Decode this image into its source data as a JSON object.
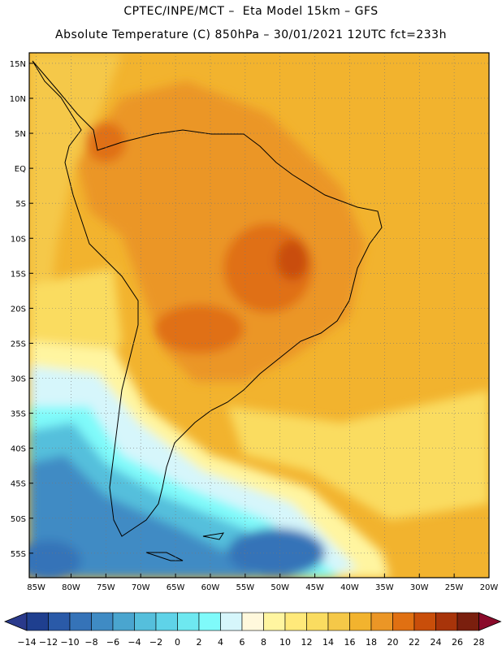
{
  "header": {
    "line1": "CPTEC/INPE/MCT –  Eta Model 15km – GFS",
    "line2": "Absolute Temperature (C) 850hPa – 30/01/2021 12UTC fct=233h"
  },
  "map": {
    "lat_labels": [
      "15N",
      "10N",
      "5N",
      "EQ",
      "5S",
      "10S",
      "15S",
      "20S",
      "25S",
      "30S",
      "35S",
      "40S",
      "45S",
      "50S",
      "55S"
    ],
    "lat_values": [
      15,
      10,
      5,
      0,
      -5,
      -10,
      -15,
      -20,
      -25,
      -30,
      -35,
      -40,
      -45,
      -50,
      -55
    ],
    "lon_labels": [
      "85W",
      "80W",
      "75W",
      "70W",
      "65W",
      "60W",
      "55W",
      "50W",
      "45W",
      "40W",
      "35W",
      "30W",
      "25W",
      "20W"
    ],
    "lon_values": [
      -85,
      -80,
      -75,
      -70,
      -65,
      -60,
      -55,
      -50,
      -45,
      -40,
      -35,
      -30,
      -25,
      -20
    ],
    "extent": {
      "lon_min": -86,
      "lon_max": -20,
      "lat_min": -58.5,
      "lat_max": 16.5
    }
  },
  "colorbar": {
    "labels": [
      "-14",
      "-12",
      "-10",
      "-8",
      "-6",
      "-4",
      "-2",
      "0",
      "2",
      "4",
      "6",
      "8",
      "10",
      "12",
      "14",
      "16",
      "18",
      "20",
      "22",
      "24",
      "26",
      "28"
    ],
    "colors": [
      "#1f3f8f",
      "#2a5aa8",
      "#3573b8",
      "#3f8bc4",
      "#4aa5cf",
      "#55bfdc",
      "#5fd3e8",
      "#6ee8f0",
      "#7ffafa",
      "#d6f6fb",
      "#fff8dc",
      "#fff5a0",
      "#ffe97a",
      "#fadc60",
      "#f5c848",
      "#f2b32e",
      "#eb9626",
      "#e07012",
      "#c94e0a",
      "#a8340a",
      "#7a1f0e"
    ],
    "under_color": "#2a3a8c",
    "over_color": "#8a0a2a"
  }
}
